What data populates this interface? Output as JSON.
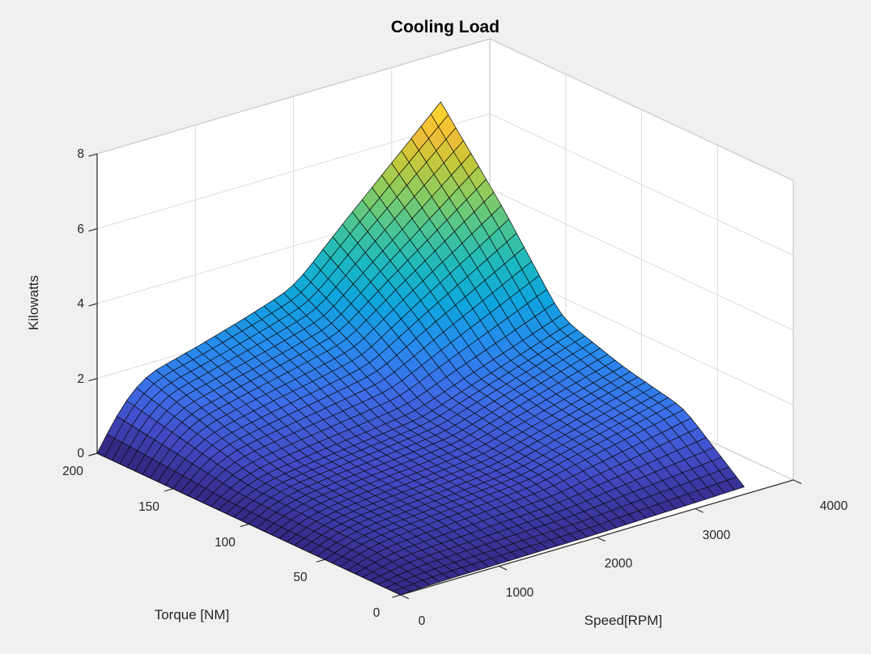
{
  "title": "Cooling Load",
  "axes": {
    "speed": {
      "label": "Speed[RPM]",
      "ticks": [
        "0",
        "1000",
        "2000",
        "3000",
        "4000"
      ],
      "range": [
        0,
        4000
      ]
    },
    "torque": {
      "label": "Torque [NM]",
      "ticks": [
        "0",
        "50",
        "100",
        "150",
        "200"
      ],
      "range": [
        0,
        200
      ]
    },
    "z": {
      "label": "Kilowatts",
      "ticks": [
        "0",
        "2",
        "4",
        "6",
        "8"
      ],
      "range": [
        0,
        8
      ]
    }
  },
  "chart_data": {
    "type": "surface",
    "title": "Cooling Load",
    "xlabel": "Speed[RPM]",
    "ylabel": "Torque [NM]",
    "zlabel": "Kilowatts",
    "x_speed_rpm": [
      0,
      250,
      500,
      1000,
      1500,
      2000,
      2500,
      3000,
      3500
    ],
    "y_torque_nm": [
      0,
      40,
      80,
      120,
      160,
      200
    ],
    "z_kilowatts": [
      [
        0,
        0.03,
        0.05,
        0.06,
        0.08,
        0.09,
        0.13,
        0.16,
        0.2
      ],
      [
        0,
        0.25,
        0.37,
        0.47,
        0.57,
        0.67,
        0.97,
        1.26,
        1.55
      ],
      [
        0,
        0.31,
        0.45,
        0.58,
        0.69,
        0.82,
        1.19,
        1.55,
        1.9
      ],
      [
        0,
        0.4,
        0.59,
        0.75,
        0.9,
        1.06,
        1.54,
        1.99,
        2.45
      ],
      [
        0,
        0.77,
        1.12,
        1.44,
        1.72,
        2.03,
        2.95,
        3.82,
        4.7
      ],
      [
        0,
        1.1,
        1.7,
        2.05,
        2.45,
        2.9,
        4.2,
        5.45,
        6.7
      ]
    ],
    "z_max_kw": 6.7,
    "x_axis_range": [
      0,
      4000
    ],
    "y_axis_range": [
      0,
      200
    ],
    "z_axis_range": [
      0,
      8
    ],
    "grid": true,
    "legend": "none",
    "colormap": "parula",
    "view": "3d perspective, azimuth -37.5, elevation 30"
  },
  "colors": {
    "figure_background": "#F0F0F0",
    "pane_background": "#FFFFFF",
    "grid_line": "#DCDCDC",
    "pane_border": "#C9C9C9",
    "axis_line": "#333333",
    "tick_text": "#262626",
    "mesh_edge": "#0B0B0B",
    "parula_stops": [
      [
        0.0,
        "#352A87"
      ],
      [
        0.1,
        "#424BC6"
      ],
      [
        0.2,
        "#3D6EE8"
      ],
      [
        0.3,
        "#268CED"
      ],
      [
        0.4,
        "#0FA5DD"
      ],
      [
        0.5,
        "#1CB8C0"
      ],
      [
        0.6,
        "#48C596"
      ],
      [
        0.7,
        "#89CC60"
      ],
      [
        0.8,
        "#CBC737"
      ],
      [
        0.87,
        "#F3BC38"
      ],
      [
        0.94,
        "#FCD32E"
      ],
      [
        1.0,
        "#F7FB0E"
      ]
    ]
  }
}
